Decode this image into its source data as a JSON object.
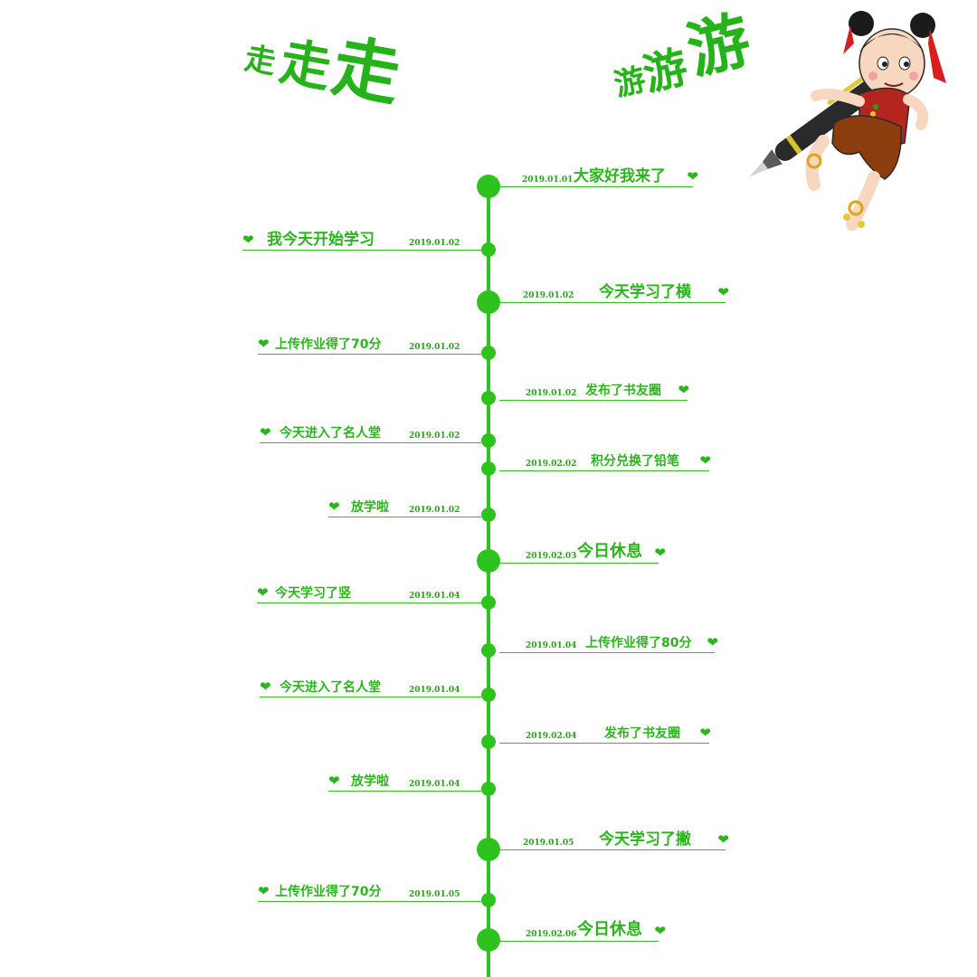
{
  "header": {
    "walk_title": [
      "走",
      "走",
      "走"
    ],
    "tour_title": [
      "游",
      "游",
      "游"
    ]
  },
  "timeline": {
    "entries": [
      {
        "side": "right",
        "date": "2019.01.01",
        "label": "大家好我来了",
        "heart": "❤"
      },
      {
        "side": "left",
        "date": "2019.01.02",
        "label": "我今天开始学习",
        "heart": "❤"
      },
      {
        "side": "right",
        "date": "2019.01.02",
        "label": "今天学习了横",
        "heart": "❤"
      },
      {
        "side": "left",
        "date": "2019.01.02",
        "label": "上传作业得了70分",
        "heart": "❤"
      },
      {
        "side": "right",
        "date": "2019.01.02",
        "label": "发布了书友圈",
        "heart": "❤"
      },
      {
        "side": "left",
        "date": "2019.01.02",
        "label": "今天进入了名人堂",
        "heart": "❤"
      },
      {
        "side": "right",
        "date": "2019.02.02",
        "label": "积分兑换了铅笔",
        "heart": "❤"
      },
      {
        "side": "left",
        "date": "2019.01.02",
        "label": "放学啦",
        "heart": "❤"
      },
      {
        "side": "right",
        "date": "2019.02.03",
        "label": "今日休息",
        "heart": "❤"
      },
      {
        "side": "left",
        "date": "2019.01.04",
        "label": "今天学习了竖",
        "heart": "❤"
      },
      {
        "side": "right",
        "date": "2019.01.04",
        "label": "上传作业得了80分",
        "heart": "❤"
      },
      {
        "side": "left",
        "date": "2019.01.04",
        "label": "今天进入了名人堂",
        "heart": "❤"
      },
      {
        "side": "right",
        "date": "2019.02.04",
        "label": "发布了书友圈",
        "heart": "❤"
      },
      {
        "side": "left",
        "date": "2019.01.04",
        "label": "放学啦",
        "heart": "❤"
      },
      {
        "side": "right",
        "date": "2019.01.05",
        "label": "今天学习了撇",
        "heart": "❤"
      },
      {
        "side": "left",
        "date": "2019.01.05",
        "label": "上传作业得了70分",
        "heart": "❤"
      },
      {
        "side": "right",
        "date": "2019.02.06",
        "label": "今日休息",
        "heart": "❤"
      }
    ]
  },
  "illustration": {
    "icon": "cartoon-girl-with-fountain-pen-icon"
  },
  "colors": {
    "accent": "#2ec21d",
    "text": "#2bb51c"
  }
}
